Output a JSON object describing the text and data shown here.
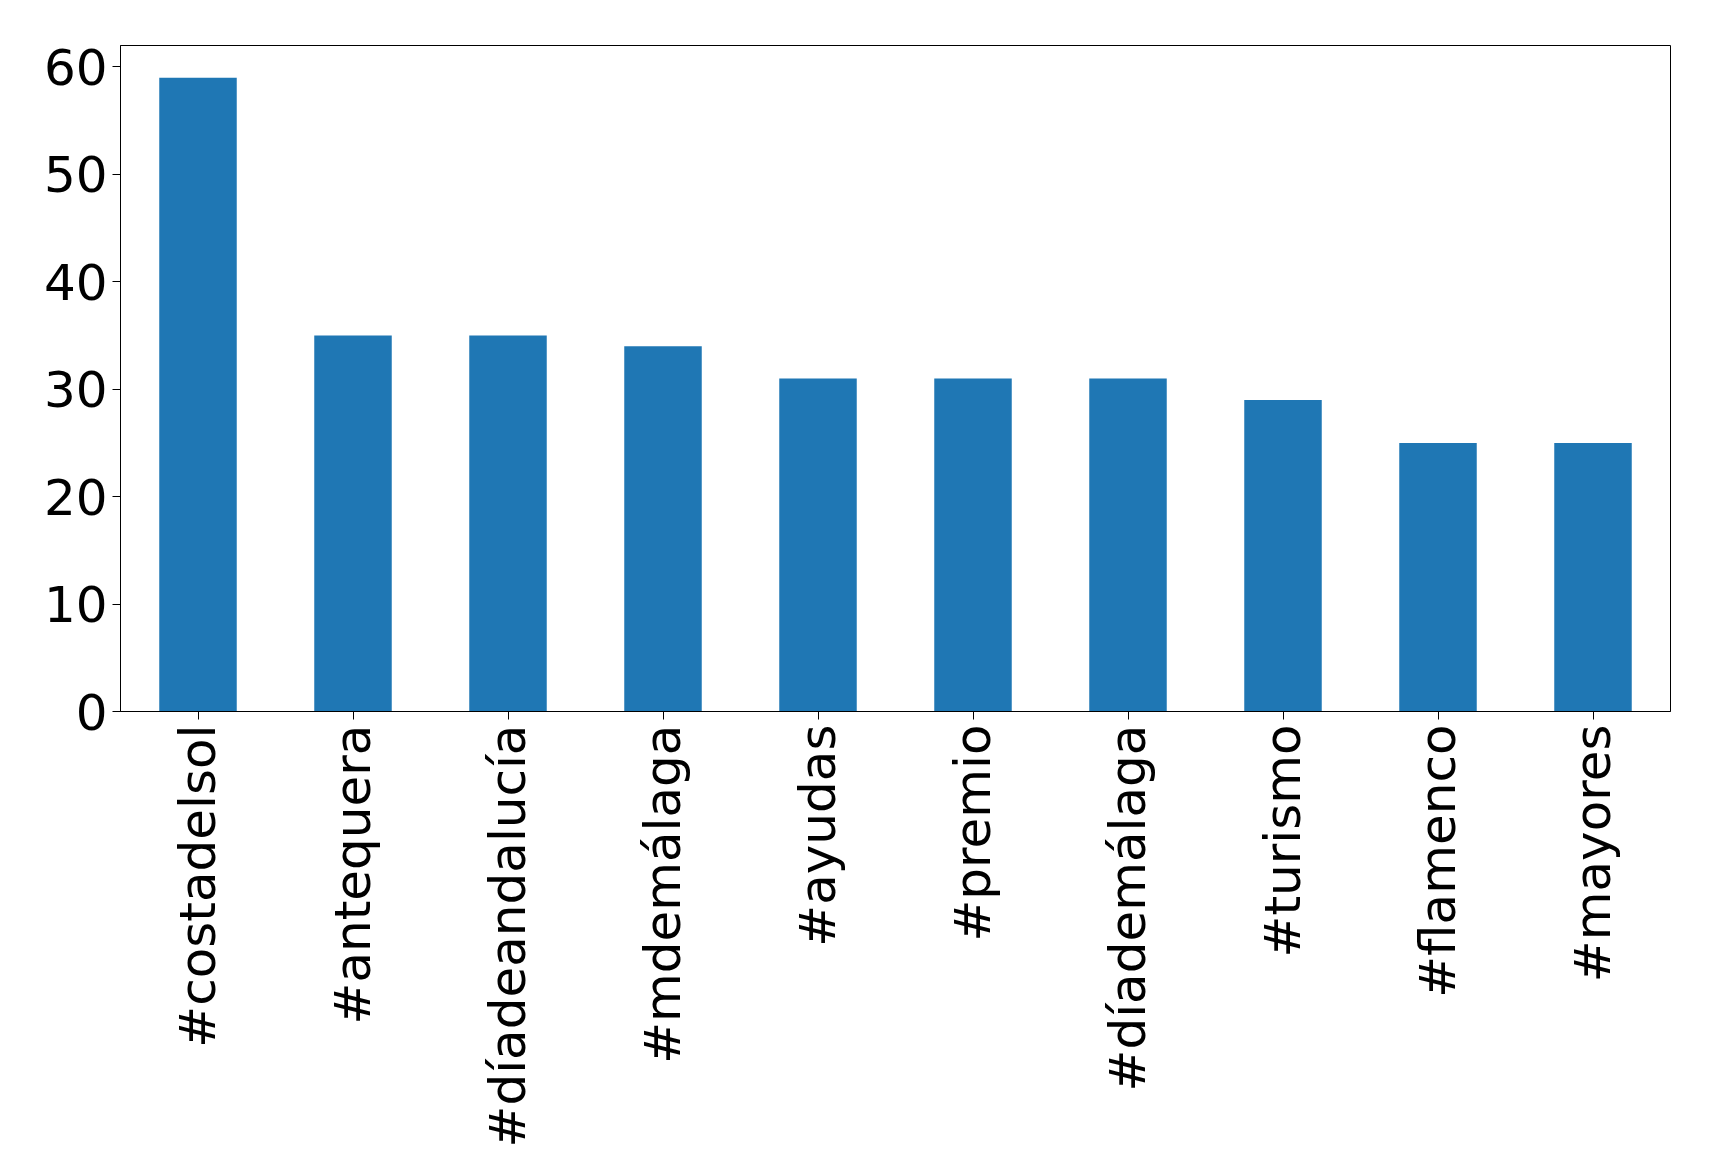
{
  "chart_data": {
    "type": "bar",
    "categories": [
      "#costadelsol",
      "#antequera",
      "#díadeandalucía",
      "#mdemálaga",
      "#ayudas",
      "#premio",
      "#díademálaga",
      "#turismo",
      "#flamenco",
      "#mayores"
    ],
    "values": [
      59,
      35,
      35,
      34,
      31,
      31,
      31,
      29,
      25,
      25
    ],
    "color": "#1f77b4",
    "ylim": [
      0,
      62
    ],
    "yticks": [
      0,
      10,
      20,
      30,
      40,
      50,
      60
    ],
    "grid": false
  }
}
